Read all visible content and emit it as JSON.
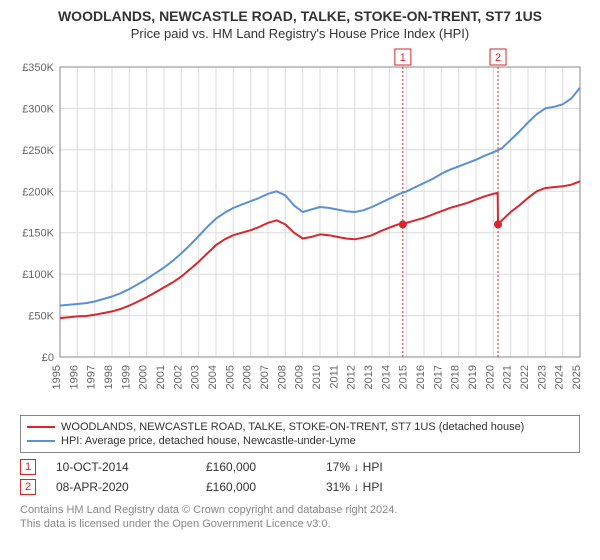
{
  "title_line1": "WOODLANDS, NEWCASTLE ROAD, TALKE, STOKE-ON-TRENT, ST7 1US",
  "title_line2": "Price paid vs. HM Land Registry's House Price Index (HPI)",
  "chart": {
    "type": "line",
    "background_color": "#ffffff",
    "grid_color": "#dcdcdc",
    "axis_color": "#888888",
    "tick_label_color": "#666666",
    "tick_fontsize": 11,
    "ylabel_prefix": "£",
    "ylim": [
      0,
      350000
    ],
    "ytick_step": 50000,
    "yticks": [
      "£0",
      "£50K",
      "£100K",
      "£150K",
      "£200K",
      "£250K",
      "£300K",
      "£350K"
    ],
    "xlim": [
      1995,
      2025
    ],
    "xticks": [
      1995,
      1996,
      1997,
      1998,
      1999,
      2000,
      2001,
      2002,
      2003,
      2004,
      2005,
      2006,
      2007,
      2008,
      2009,
      2010,
      2011,
      2012,
      2013,
      2014,
      2015,
      2016,
      2017,
      2018,
      2019,
      2020,
      2021,
      2022,
      2023,
      2024,
      2025
    ],
    "series": [
      {
        "name": "property",
        "label": "WOODLANDS, NEWCASTLE ROAD, TALKE, STOKE-ON-TRENT, ST7 1US (detached house)",
        "color": "#d9262d",
        "line_width": 2,
        "data": [
          [
            1995.0,
            47000
          ],
          [
            1995.5,
            48000
          ],
          [
            1996.0,
            49000
          ],
          [
            1996.5,
            49500
          ],
          [
            1997.0,
            51000
          ],
          [
            1997.5,
            53000
          ],
          [
            1998.0,
            55000
          ],
          [
            1998.5,
            58000
          ],
          [
            1999.0,
            62000
          ],
          [
            1999.5,
            67000
          ],
          [
            2000.0,
            72000
          ],
          [
            2000.5,
            78000
          ],
          [
            2001.0,
            84000
          ],
          [
            2001.5,
            90000
          ],
          [
            2002.0,
            97000
          ],
          [
            2002.5,
            106000
          ],
          [
            2003.0,
            115000
          ],
          [
            2003.5,
            125000
          ],
          [
            2004.0,
            135000
          ],
          [
            2004.5,
            142000
          ],
          [
            2005.0,
            147000
          ],
          [
            2005.5,
            150000
          ],
          [
            2006.0,
            153000
          ],
          [
            2006.5,
            157000
          ],
          [
            2007.0,
            162000
          ],
          [
            2007.5,
            165000
          ],
          [
            2008.0,
            160000
          ],
          [
            2008.5,
            150000
          ],
          [
            2009.0,
            143000
          ],
          [
            2009.5,
            145000
          ],
          [
            2010.0,
            148000
          ],
          [
            2010.5,
            147000
          ],
          [
            2011.0,
            145000
          ],
          [
            2011.5,
            143000
          ],
          [
            2012.0,
            142000
          ],
          [
            2012.5,
            144000
          ],
          [
            2013.0,
            147000
          ],
          [
            2013.5,
            152000
          ],
          [
            2014.0,
            156000
          ],
          [
            2014.5,
            160000
          ],
          [
            2014.78,
            160000
          ],
          [
            2015.0,
            162000
          ],
          [
            2015.5,
            165000
          ],
          [
            2016.0,
            168000
          ],
          [
            2016.5,
            172000
          ],
          [
            2017.0,
            176000
          ],
          [
            2017.5,
            180000
          ],
          [
            2018.0,
            183000
          ],
          [
            2018.5,
            186000
          ],
          [
            2019.0,
            190000
          ],
          [
            2019.5,
            194000
          ],
          [
            2020.0,
            197000
          ],
          [
            2020.25,
            198000
          ],
          [
            2020.27,
            160000
          ],
          [
            2020.5,
            165000
          ],
          [
            2021.0,
            175000
          ],
          [
            2021.5,
            183000
          ],
          [
            2022.0,
            192000
          ],
          [
            2022.5,
            200000
          ],
          [
            2023.0,
            204000
          ],
          [
            2023.5,
            205000
          ],
          [
            2024.0,
            206000
          ],
          [
            2024.5,
            208000
          ],
          [
            2025.0,
            212000
          ]
        ]
      },
      {
        "name": "hpi",
        "label": "HPI: Average price, detached house, Newcastle-under-Lyme",
        "color": "#5b8fd6",
        "line_width": 2,
        "data": [
          [
            1995.0,
            62000
          ],
          [
            1995.5,
            63000
          ],
          [
            1996.0,
            64000
          ],
          [
            1996.5,
            65000
          ],
          [
            1997.0,
            67000
          ],
          [
            1997.5,
            70000
          ],
          [
            1998.0,
            73000
          ],
          [
            1998.5,
            77000
          ],
          [
            1999.0,
            82000
          ],
          [
            1999.5,
            88000
          ],
          [
            2000.0,
            94000
          ],
          [
            2000.5,
            101000
          ],
          [
            2001.0,
            108000
          ],
          [
            2001.5,
            116000
          ],
          [
            2002.0,
            125000
          ],
          [
            2002.5,
            135000
          ],
          [
            2003.0,
            146000
          ],
          [
            2003.5,
            157000
          ],
          [
            2004.0,
            167000
          ],
          [
            2004.5,
            174000
          ],
          [
            2005.0,
            180000
          ],
          [
            2005.5,
            184000
          ],
          [
            2006.0,
            188000
          ],
          [
            2006.5,
            192000
          ],
          [
            2007.0,
            197000
          ],
          [
            2007.5,
            200000
          ],
          [
            2008.0,
            195000
          ],
          [
            2008.5,
            183000
          ],
          [
            2009.0,
            175000
          ],
          [
            2009.5,
            178000
          ],
          [
            2010.0,
            181000
          ],
          [
            2010.5,
            180000
          ],
          [
            2011.0,
            178000
          ],
          [
            2011.5,
            176000
          ],
          [
            2012.0,
            175000
          ],
          [
            2012.5,
            177000
          ],
          [
            2013.0,
            181000
          ],
          [
            2013.5,
            186000
          ],
          [
            2014.0,
            191000
          ],
          [
            2014.5,
            196000
          ],
          [
            2015.0,
            200000
          ],
          [
            2015.5,
            205000
          ],
          [
            2016.0,
            210000
          ],
          [
            2016.5,
            215000
          ],
          [
            2017.0,
            221000
          ],
          [
            2017.5,
            226000
          ],
          [
            2018.0,
            230000
          ],
          [
            2018.5,
            234000
          ],
          [
            2019.0,
            238000
          ],
          [
            2019.5,
            243000
          ],
          [
            2020.0,
            247000
          ],
          [
            2020.5,
            252000
          ],
          [
            2021.0,
            262000
          ],
          [
            2021.5,
            272000
          ],
          [
            2022.0,
            283000
          ],
          [
            2022.5,
            293000
          ],
          [
            2023.0,
            300000
          ],
          [
            2023.5,
            302000
          ],
          [
            2024.0,
            305000
          ],
          [
            2024.5,
            312000
          ],
          [
            2025.0,
            325000
          ]
        ]
      }
    ],
    "sale_markers": [
      {
        "index": "1",
        "x": 2014.78,
        "y": 160000,
        "line_color": "#d9262d",
        "dash": "2,2"
      },
      {
        "index": "2",
        "x": 2020.27,
        "y": 160000,
        "line_color": "#d9262d",
        "dash": "2,2"
      }
    ]
  },
  "legend": {
    "border_color": "#888888",
    "items": [
      {
        "color": "#d9262d",
        "label": "WOODLANDS, NEWCASTLE ROAD, TALKE, STOKE-ON-TRENT, ST7 1US (detached house)"
      },
      {
        "color": "#5b8fd6",
        "label": "HPI: Average price, detached house, Newcastle-under-Lyme"
      }
    ]
  },
  "sales": [
    {
      "marker": "1",
      "date": "10-OCT-2014",
      "price": "£160,000",
      "delta": "17% ↓ HPI"
    },
    {
      "marker": "2",
      "date": "08-APR-2020",
      "price": "£160,000",
      "delta": "31% ↓ HPI"
    }
  ],
  "caption_line1": "Contains HM Land Registry data © Crown copyright and database right 2024.",
  "caption_line2": "This data is licensed under the Open Government Licence v3.0."
}
